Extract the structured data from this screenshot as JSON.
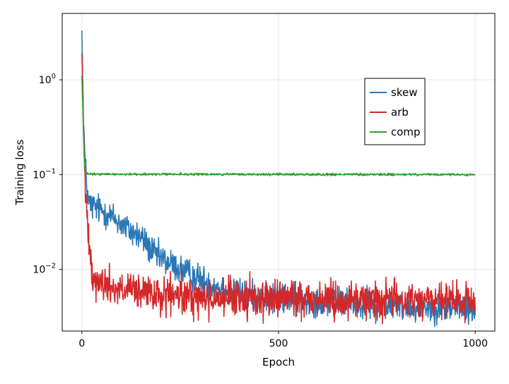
{
  "chart_data": {
    "type": "line",
    "title": "",
    "xlabel": "Epoch",
    "ylabel": "Training loss",
    "xlim": [
      -50,
      1050
    ],
    "ylim_log10": [
      -2.65,
      0.7
    ],
    "y_scale": "log10",
    "x_ticks": [
      0,
      500,
      1000
    ],
    "x_tick_labels": [
      "0",
      "500",
      "1000"
    ],
    "y_ticks_log10": [
      -2,
      -1,
      0
    ],
    "y_tick_labels": [
      {
        "base": "10",
        "exp": "−2"
      },
      {
        "base": "10",
        "exp": "−1"
      },
      {
        "base": "10",
        "exp": "0"
      }
    ],
    "grid": true,
    "legend_position": "upper-right-inset",
    "series": [
      {
        "name": "skew",
        "color": "#2a78b5",
        "noise": 0.08,
        "points": [
          [
            0,
            3.3
          ],
          [
            2,
            1.0
          ],
          [
            5,
            0.3
          ],
          [
            8,
            0.14
          ],
          [
            12,
            0.08
          ],
          [
            15,
            0.06
          ],
          [
            18,
            0.05
          ],
          [
            25,
            0.047
          ],
          [
            40,
            0.044
          ],
          [
            60,
            0.04
          ],
          [
            80,
            0.035
          ],
          [
            100,
            0.03
          ],
          [
            120,
            0.026
          ],
          [
            140,
            0.023
          ],
          [
            160,
            0.02
          ],
          [
            175,
            0.016
          ],
          [
            190,
            0.0138
          ],
          [
            210,
            0.0125
          ],
          [
            230,
            0.0112
          ],
          [
            260,
            0.0095
          ],
          [
            290,
            0.0082
          ],
          [
            320,
            0.0073
          ],
          [
            350,
            0.0064
          ],
          [
            380,
            0.0058
          ],
          [
            420,
            0.0053
          ],
          [
            480,
            0.005
          ],
          [
            550,
            0.0048
          ],
          [
            620,
            0.0046
          ],
          [
            700,
            0.0044
          ],
          [
            780,
            0.0042
          ],
          [
            850,
            0.0041
          ],
          [
            920,
            0.004
          ],
          [
            1000,
            0.0038
          ]
        ]
      },
      {
        "name": "arb",
        "color": "#d62728",
        "noise": 0.1,
        "points": [
          [
            0,
            1.9
          ],
          [
            2,
            0.9
          ],
          [
            4,
            0.4
          ],
          [
            6,
            0.15
          ],
          [
            8,
            0.08
          ],
          [
            10,
            0.05
          ],
          [
            14,
            0.035
          ],
          [
            18,
            0.025
          ],
          [
            22,
            0.015
          ],
          [
            26,
            0.01
          ],
          [
            30,
            0.0085
          ],
          [
            40,
            0.0075
          ],
          [
            60,
            0.0068
          ],
          [
            80,
            0.0065
          ],
          [
            100,
            0.006
          ],
          [
            130,
            0.0058
          ],
          [
            160,
            0.0055
          ],
          [
            200,
            0.0052
          ],
          [
            250,
            0.0052
          ],
          [
            300,
            0.005
          ],
          [
            400,
            0.005
          ],
          [
            500,
            0.005
          ],
          [
            600,
            0.0049
          ],
          [
            700,
            0.0048
          ],
          [
            800,
            0.0048
          ],
          [
            900,
            0.0047
          ],
          [
            1000,
            0.0045
          ]
        ]
      },
      {
        "name": "comp",
        "color": "#2ca02c",
        "noise": 0.006,
        "points": [
          [
            0,
            1.1
          ],
          [
            2,
            0.6
          ],
          [
            4,
            0.28
          ],
          [
            6,
            0.15
          ],
          [
            8,
            0.115
          ],
          [
            10,
            0.105
          ],
          [
            14,
            0.102
          ],
          [
            20,
            0.101
          ],
          [
            1000,
            0.1
          ]
        ]
      }
    ]
  }
}
